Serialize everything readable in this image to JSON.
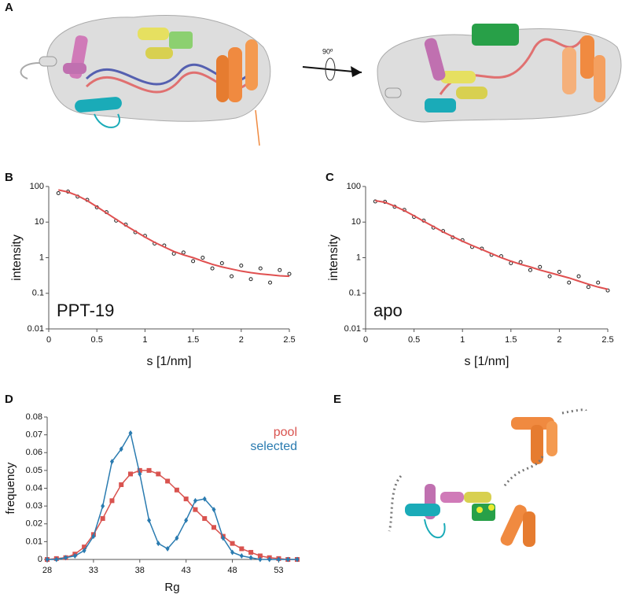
{
  "panel_labels": [
    "A",
    "B",
    "C",
    "D",
    "E"
  ],
  "rotation_label": "90º",
  "chart_data": [
    {
      "type": "scatter",
      "annotation": "PPT-19",
      "x_label": "s [1/nm]",
      "y_label": "intensity",
      "x": [
        0.1,
        0.2,
        0.3,
        0.4,
        0.5,
        0.6,
        0.7,
        0.8,
        0.9,
        1.0,
        1.1,
        1.2,
        1.3,
        1.4,
        1.5,
        1.6,
        1.7,
        1.8,
        1.9,
        2.0,
        2.1,
        2.2,
        2.3,
        2.4,
        2.5
      ],
      "series": [
        {
          "color": "#222222",
          "marker": "circle",
          "values": [
            65,
            72,
            52,
            42,
            26,
            19,
            11,
            8.5,
            5.2,
            4.1,
            2.5,
            2.2,
            1.3,
            1.4,
            0.8,
            1.0,
            0.5,
            0.7,
            0.3,
            0.6,
            0.25,
            0.5,
            0.2,
            0.45,
            0.35
          ]
        },
        {
          "color": "#e05050",
          "marker": "line",
          "values": [
            80,
            70,
            55,
            40,
            27,
            18,
            12,
            8,
            5.5,
            3.8,
            2.7,
            2.0,
            1.5,
            1.2,
            1.0,
            0.8,
            0.65,
            0.55,
            0.48,
            0.42,
            0.38,
            0.35,
            0.33,
            0.31,
            0.3
          ]
        }
      ],
      "xlim": [
        0,
        2.5
      ],
      "xticks": [
        0,
        0.5,
        1,
        1.5,
        2,
        2.5
      ],
      "ylim": [
        0.01,
        100
      ],
      "yticks": [
        0.01,
        0.1,
        1,
        10,
        100
      ],
      "ylog": true
    },
    {
      "type": "scatter",
      "annotation": "apo",
      "x_label": "s [1/nm]",
      "y_label": "intensity",
      "x": [
        0.1,
        0.2,
        0.3,
        0.4,
        0.5,
        0.6,
        0.7,
        0.8,
        0.9,
        1.0,
        1.1,
        1.2,
        1.3,
        1.4,
        1.5,
        1.6,
        1.7,
        1.8,
        1.9,
        2.0,
        2.1,
        2.2,
        2.3,
        2.4,
        2.5
      ],
      "series": [
        {
          "color": "#222222",
          "marker": "circle",
          "values": [
            38,
            37,
            27,
            22,
            14,
            11,
            7,
            5.6,
            3.7,
            3.1,
            2.0,
            1.8,
            1.2,
            1.1,
            0.7,
            0.75,
            0.45,
            0.55,
            0.3,
            0.4,
            0.2,
            0.3,
            0.15,
            0.2,
            0.12
          ]
        },
        {
          "color": "#e05050",
          "marker": "line",
          "values": [
            40,
            36,
            28,
            21,
            15,
            10.5,
            7.5,
            5.3,
            3.9,
            2.9,
            2.2,
            1.7,
            1.3,
            1.0,
            0.8,
            0.65,
            0.55,
            0.45,
            0.38,
            0.32,
            0.27,
            0.22,
            0.18,
            0.15,
            0.13
          ]
        }
      ],
      "xlim": [
        0,
        2.5
      ],
      "xticks": [
        0,
        0.5,
        1,
        1.5,
        2,
        2.5
      ],
      "ylim": [
        0.01,
        100
      ],
      "yticks": [
        0.01,
        0.1,
        1,
        10,
        100
      ],
      "ylog": true
    },
    {
      "type": "line",
      "x_label": "Rg",
      "y_label": "frequency",
      "x": [
        28,
        29,
        30,
        31,
        32,
        33,
        34,
        35,
        36,
        37,
        38,
        39,
        40,
        41,
        42,
        43,
        44,
        45,
        46,
        47,
        48,
        49,
        50,
        51,
        52,
        53,
        54,
        55
      ],
      "series": [
        {
          "name": "pool",
          "color": "#d9534f",
          "marker": "square",
          "values": [
            0,
            0.0005,
            0.001,
            0.003,
            0.007,
            0.014,
            0.023,
            0.033,
            0.042,
            0.048,
            0.05,
            0.05,
            0.048,
            0.044,
            0.039,
            0.034,
            0.028,
            0.023,
            0.018,
            0.013,
            0.009,
            0.006,
            0.004,
            0.002,
            0.001,
            0.0005,
            0,
            0
          ]
        },
        {
          "name": "selected",
          "color": "#2a7bb0",
          "marker": "diamond",
          "values": [
            0,
            0,
            0.001,
            0.002,
            0.005,
            0.013,
            0.03,
            0.055,
            0.062,
            0.071,
            0.048,
            0.022,
            0.009,
            0.006,
            0.012,
            0.022,
            0.033,
            0.034,
            0.028,
            0.012,
            0.004,
            0.002,
            0.001,
            0,
            0,
            0,
            0,
            0
          ]
        }
      ],
      "xlim": [
        28,
        55
      ],
      "xticks": [
        28,
        33,
        38,
        43,
        48,
        53
      ],
      "ylim": [
        0,
        0.08
      ],
      "yticks": [
        0,
        0.01,
        0.02,
        0.03,
        0.04,
        0.05,
        0.06,
        0.07,
        0.08
      ]
    }
  ]
}
